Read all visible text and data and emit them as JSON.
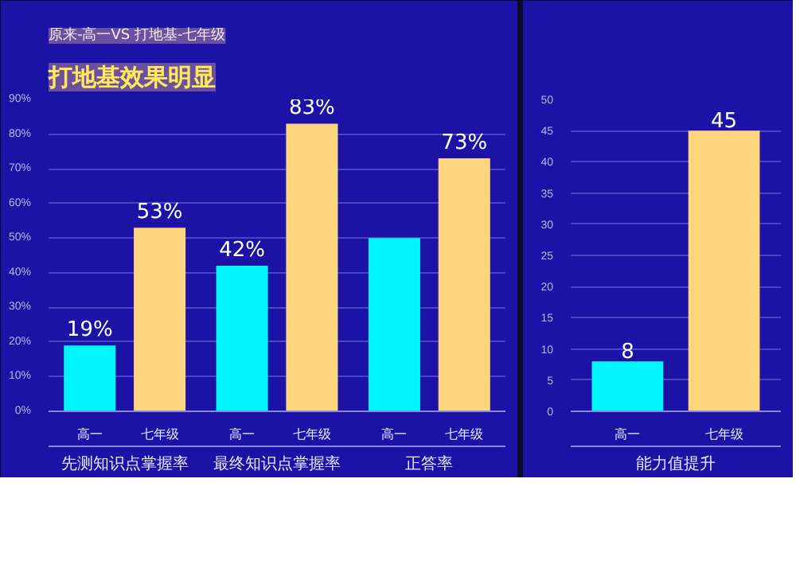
{
  "chart_data": [
    {
      "type": "bar",
      "subtitle": "原来-高一VS 打地基-七年级",
      "title": "打地基效果明显",
      "categories": [
        "先测知识点掌握率",
        "最终知识点掌握率",
        "正答率"
      ],
      "series": [
        {
          "name": "高一",
          "color": "#00f6fa",
          "values": [
            19,
            42,
            50
          ]
        },
        {
          "name": "七年级",
          "color": "#ffd47e",
          "values": [
            53,
            83,
            73
          ]
        }
      ],
      "ylim": [
        0,
        90
      ],
      "yticks": [
        {
          "value": 0,
          "label": "0%"
        },
        {
          "value": 10,
          "label": "10%"
        },
        {
          "value": 20,
          "label": "20%"
        },
        {
          "value": 30,
          "label": "30%"
        },
        {
          "value": 40,
          "label": "40%"
        },
        {
          "value": 50,
          "label": "50%"
        },
        {
          "value": 60,
          "label": "60%"
        },
        {
          "value": 70,
          "label": "70%"
        },
        {
          "value": 80,
          "label": "80%"
        },
        {
          "value": 90,
          "label": "90%"
        }
      ],
      "value_labels": [
        [
          "19%",
          "42%",
          null
        ],
        [
          "53%",
          "83%",
          "73%"
        ]
      ],
      "grid": "y"
    },
    {
      "type": "bar",
      "categories": [
        "能力值提升"
      ],
      "series": [
        {
          "name": "高一",
          "color": "#00f6fa",
          "values": [
            8
          ]
        },
        {
          "name": "七年级",
          "color": "#ffd47e",
          "values": [
            45
          ]
        }
      ],
      "ylim": [
        0,
        50
      ],
      "yticks": [
        0,
        5,
        10,
        15,
        20,
        25,
        30,
        35,
        40,
        45,
        50
      ],
      "data_labels": true,
      "grid": "y"
    }
  ]
}
